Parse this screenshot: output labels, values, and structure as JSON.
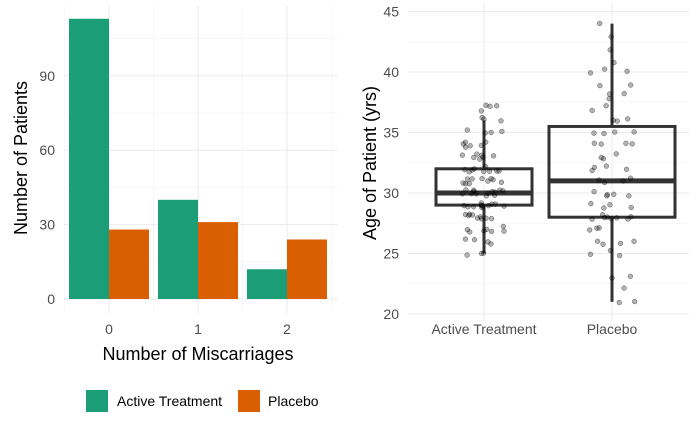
{
  "chart_data": [
    {
      "type": "bar",
      "xlabel": "Number of Miscarriages",
      "ylabel": "Number of Patients",
      "categories": [
        "0",
        "1",
        "2"
      ],
      "series": [
        {
          "name": "Active Treatment",
          "color": "#1b9e77",
          "values": [
            113,
            40,
            12
          ]
        },
        {
          "name": "Placebo",
          "color": "#d95f02",
          "values": [
            28,
            31,
            24
          ]
        }
      ],
      "ylim": [
        0,
        118
      ],
      "yticks": [
        0,
        30,
        60,
        90
      ],
      "grid": true,
      "legend_position": "bottom"
    },
    {
      "type": "box",
      "xlabel": "",
      "ylabel": "Age of Patient (yrs)",
      "categories": [
        "Active Treatment",
        "Placebo"
      ],
      "ylim": [
        20,
        45
      ],
      "yticks": [
        20,
        25,
        30,
        35,
        40,
        45
      ],
      "grid": true,
      "boxes": [
        {
          "category": "Active Treatment",
          "whisker_low": 25,
          "q1": 29,
          "median": 30,
          "q3": 32,
          "whisker_high": 36
        },
        {
          "category": "Placebo",
          "whisker_low": 21,
          "q1": 28,
          "median": 31,
          "q3": 35.5,
          "whisker_high": 44
        }
      ],
      "points": [
        {
          "category": "Active Treatment",
          "ages": [
            25,
            25,
            25,
            26,
            26,
            26,
            26,
            27,
            27,
            27,
            27,
            27,
            27,
            27,
            28,
            28,
            28,
            28,
            28,
            28,
            28,
            28,
            28,
            29,
            29,
            29,
            29,
            29,
            29,
            29,
            29,
            29,
            29,
            29,
            29,
            30,
            30,
            30,
            30,
            30,
            30,
            30,
            30,
            30,
            30,
            30,
            30,
            30,
            31,
            31,
            31,
            31,
            31,
            31,
            31,
            31,
            31,
            31,
            32,
            32,
            32,
            32,
            32,
            32,
            32,
            32,
            32,
            33,
            33,
            33,
            33,
            33,
            33,
            33,
            34,
            34,
            34,
            34,
            34,
            34,
            35,
            35,
            35,
            35,
            36,
            36,
            36,
            37,
            37,
            37,
            37
          ]
        },
        {
          "category": "Placebo",
          "ages": [
            21,
            21,
            22,
            23,
            23,
            25,
            25,
            25,
            26,
            26,
            26,
            26,
            27,
            27,
            27,
            28,
            28,
            28,
            28,
            28,
            28,
            28,
            28,
            29,
            29,
            29,
            29,
            30,
            30,
            30,
            30,
            30,
            31,
            31,
            31,
            31,
            32,
            32,
            32,
            32,
            33,
            33,
            33,
            34,
            34,
            34,
            34,
            35,
            35,
            35,
            35,
            36,
            36,
            36,
            37,
            37,
            38,
            38,
            38,
            39,
            39,
            40,
            40,
            40,
            41,
            42,
            43,
            44
          ]
        }
      ]
    }
  ]
}
